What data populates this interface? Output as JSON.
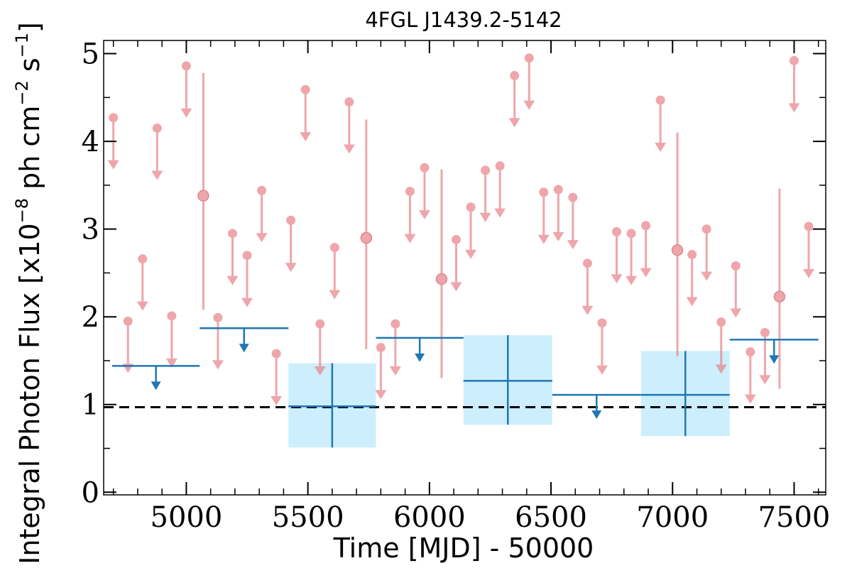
{
  "chart_data": {
    "type": "scatter",
    "title": "4FGL J1439.2-5142",
    "xlabel": "Time [MJD] - 50000",
    "ylabel": "Integral Photon Flux [x10",
    "ylabel_exp1": "−8",
    "ylabel_mid": " ph cm",
    "ylabel_exp2": "−2",
    "ylabel_mid2": " s",
    "ylabel_exp3": "−1",
    "ylabel_end": "]",
    "xlim": [
      4660,
      7630
    ],
    "ylim": [
      -0.03,
      5.15
    ],
    "x_ticks": [
      5000,
      5500,
      6000,
      6500,
      7000,
      7500
    ],
    "y_ticks": [
      0,
      1,
      2,
      3,
      4,
      5
    ],
    "reference_level": 0.97,
    "colors": {
      "short_bins": "#e8848c",
      "long_bins": "#1f77b4",
      "long_bins_band": "#cdeefc",
      "reference": "#000000"
    },
    "series": [
      {
        "points": [
          {
            "x": 4700,
            "y": 4.27,
            "ul": true
          },
          {
            "x": 4760,
            "y": 1.95,
            "ul": true
          },
          {
            "x": 4820,
            "y": 2.66,
            "ul": true
          },
          {
            "x": 4880,
            "y": 4.15,
            "ul": true
          },
          {
            "x": 4940,
            "y": 2.01,
            "ul": true
          },
          {
            "x": 5000,
            "y": 4.86,
            "ul": true
          },
          {
            "x": 5070,
            "y": 3.38,
            "ul": false,
            "err_lo": 2.08,
            "err_hi": 4.78
          },
          {
            "x": 5130,
            "y": 1.99,
            "ul": true
          },
          {
            "x": 5190,
            "y": 2.95,
            "ul": true
          },
          {
            "x": 5250,
            "y": 2.7,
            "ul": true
          },
          {
            "x": 5310,
            "y": 3.44,
            "ul": true
          },
          {
            "x": 5370,
            "y": 1.58,
            "ul": true
          },
          {
            "x": 5430,
            "y": 3.1,
            "ul": true
          },
          {
            "x": 5490,
            "y": 4.59,
            "ul": true
          },
          {
            "x": 5550,
            "y": 1.92,
            "ul": true
          },
          {
            "x": 5610,
            "y": 2.79,
            "ul": true
          },
          {
            "x": 5670,
            "y": 4.45,
            "ul": true
          },
          {
            "x": 5740,
            "y": 2.9,
            "ul": false,
            "err_lo": 1.63,
            "err_hi": 4.25
          },
          {
            "x": 5800,
            "y": 1.65,
            "ul": true
          },
          {
            "x": 5860,
            "y": 1.92,
            "ul": true
          },
          {
            "x": 5920,
            "y": 3.43,
            "ul": true
          },
          {
            "x": 5980,
            "y": 3.7,
            "ul": true
          },
          {
            "x": 6050,
            "y": 2.43,
            "ul": false,
            "err_lo": 1.3,
            "err_hi": 3.68
          },
          {
            "x": 6110,
            "y": 2.88,
            "ul": true
          },
          {
            "x": 6170,
            "y": 3.25,
            "ul": true
          },
          {
            "x": 6230,
            "y": 3.67,
            "ul": true
          },
          {
            "x": 6290,
            "y": 3.72,
            "ul": true
          },
          {
            "x": 6350,
            "y": 4.75,
            "ul": true
          },
          {
            "x": 6410,
            "y": 4.95,
            "ul": true
          },
          {
            "x": 6470,
            "y": 3.42,
            "ul": true
          },
          {
            "x": 6530,
            "y": 3.45,
            "ul": true
          },
          {
            "x": 6590,
            "y": 3.36,
            "ul": true
          },
          {
            "x": 6650,
            "y": 2.61,
            "ul": true
          },
          {
            "x": 6710,
            "y": 1.93,
            "ul": true
          },
          {
            "x": 6770,
            "y": 2.97,
            "ul": true
          },
          {
            "x": 6830,
            "y": 2.95,
            "ul": true
          },
          {
            "x": 6890,
            "y": 3.04,
            "ul": true
          },
          {
            "x": 6950,
            "y": 4.47,
            "ul": true
          },
          {
            "x": 7020,
            "y": 2.76,
            "ul": false,
            "err_lo": 1.55,
            "err_hi": 4.1
          },
          {
            "x": 7080,
            "y": 2.71,
            "ul": true
          },
          {
            "x": 7140,
            "y": 3.0,
            "ul": true
          },
          {
            "x": 7200,
            "y": 1.94,
            "ul": true
          },
          {
            "x": 7260,
            "y": 2.58,
            "ul": true
          },
          {
            "x": 7320,
            "y": 1.6,
            "ul": true
          },
          {
            "x": 7380,
            "y": 1.82,
            "ul": true
          },
          {
            "x": 7440,
            "y": 2.23,
            "ul": false,
            "err_lo": 1.18,
            "err_hi": 3.46
          },
          {
            "x": 7500,
            "y": 4.92,
            "ul": true
          },
          {
            "x": 7560,
            "y": 3.03,
            "ul": true
          }
        ]
      },
      {
        "bins": [
          {
            "x0": 4695,
            "x1": 5055,
            "y": 1.44,
            "ul": true
          },
          {
            "x0": 5055,
            "x1": 5420,
            "y": 1.87,
            "ul": true
          },
          {
            "x0": 5420,
            "x1": 5780,
            "y": 0.98,
            "ul": false,
            "err_lo": 0.51,
            "err_hi": 1.47
          },
          {
            "x0": 5780,
            "x1": 6140,
            "y": 1.76,
            "ul": true
          },
          {
            "x0": 6140,
            "x1": 6505,
            "y": 1.27,
            "ul": false,
            "err_lo": 0.77,
            "err_hi": 1.79
          },
          {
            "x0": 6505,
            "x1": 6870,
            "y": 1.11,
            "ul": true
          },
          {
            "x0": 6870,
            "x1": 7235,
            "y": 1.11,
            "ul": false,
            "err_lo": 0.64,
            "err_hi": 1.61
          },
          {
            "x0": 7235,
            "x1": 7600,
            "y": 1.74,
            "ul": true
          }
        ]
      }
    ]
  }
}
